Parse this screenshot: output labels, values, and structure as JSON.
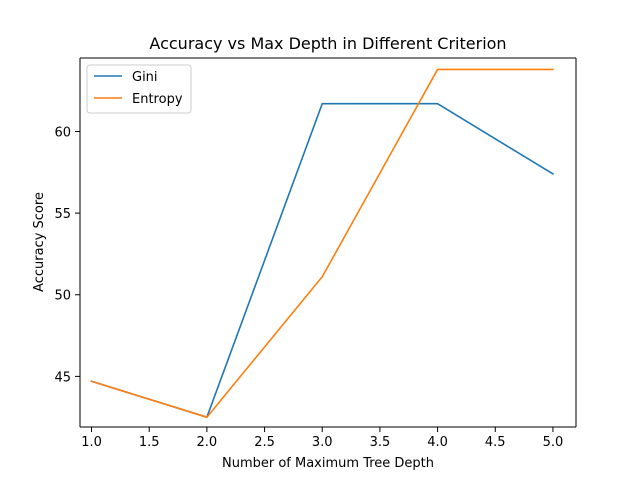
{
  "chart_data": {
    "type": "line",
    "title": "Accuracy vs Max Depth in Different Criterion",
    "xlabel": "Number of Maximum Tree Depth",
    "ylabel": "Accuracy Score",
    "x": [
      1.0,
      2.0,
      3.0,
      4.0,
      5.0
    ],
    "xlim": [
      0.9,
      5.2
    ],
    "ylim": [
      41.9,
      64.5
    ],
    "xticks": [
      1.0,
      1.5,
      2.0,
      2.5,
      3.0,
      3.5,
      4.0,
      4.5,
      5.0
    ],
    "xtick_labels": [
      "1.0",
      "1.5",
      "2.0",
      "2.5",
      "3.0",
      "3.5",
      "4.0",
      "4.5",
      "5.0"
    ],
    "yticks": [
      45,
      50,
      55,
      60
    ],
    "ytick_labels": [
      "45",
      "50",
      "55",
      "60"
    ],
    "grid": false,
    "legend_position": "top-left",
    "series": [
      {
        "name": "Gini",
        "color": "#1f77b4",
        "values": [
          44.7,
          42.5,
          61.7,
          61.7,
          57.4
        ]
      },
      {
        "name": "Entropy",
        "color": "#ff7f0e",
        "values": [
          44.7,
          42.5,
          51.1,
          63.8,
          63.8
        ]
      }
    ]
  }
}
